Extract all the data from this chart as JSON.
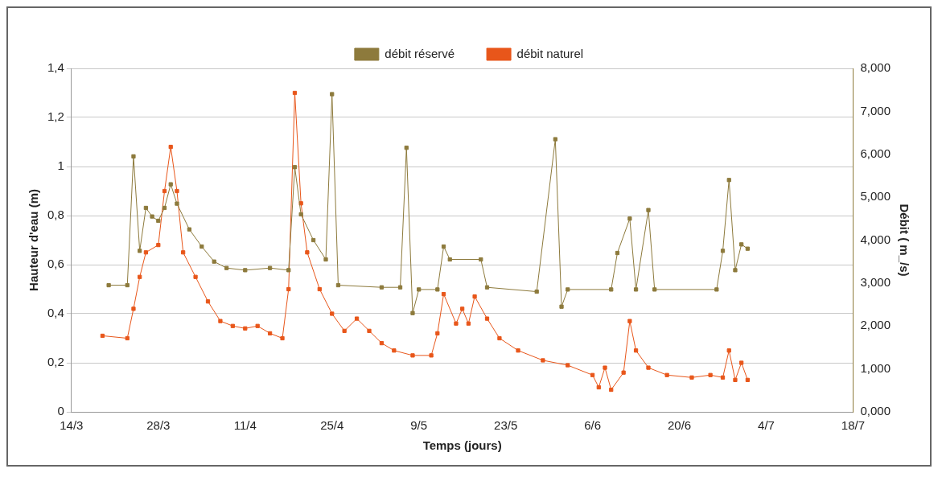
{
  "chart_data": {
    "type": "line",
    "xlabel": "Temps (jours)",
    "ylabel": "Hauteur d'eau (m)",
    "y2label": "Débit ( m_/s)",
    "xlim": [
      "--03-14",
      "--07-18"
    ],
    "xticks": [
      {
        "value": "--03-14",
        "label": "14/3"
      },
      {
        "value": "--03-28",
        "label": "28/3"
      },
      {
        "value": "--04-11",
        "label": "11/4"
      },
      {
        "value": "--04-25",
        "label": "25/4"
      },
      {
        "value": "--05-09",
        "label": "9/5"
      },
      {
        "value": "--05-23",
        "label": "23/5"
      },
      {
        "value": "--06-06",
        "label": "6/6"
      },
      {
        "value": "--06-20",
        "label": "20/6"
      },
      {
        "value": "--07-04",
        "label": "4/7"
      },
      {
        "value": "--07-18",
        "label": "18/7"
      }
    ],
    "ylim": [
      0,
      1.4
    ],
    "yticks": [
      0,
      {
        "value": 0.2,
        "label": "0,2"
      },
      {
        "value": 0.4,
        "label": "0,4"
      },
      {
        "value": 0.6,
        "label": "0,6"
      },
      {
        "value": 0.8,
        "label": "0,8"
      },
      1,
      {
        "value": 1.2,
        "label": "1,2"
      },
      {
        "value": 1.4,
        "label": "1,4"
      }
    ],
    "y2lim": [
      0,
      8
    ],
    "y2ticks": [
      {
        "value": 0,
        "label": "0,000"
      },
      {
        "value": 1,
        "label": "1,000"
      },
      {
        "value": 2,
        "label": "2,000"
      },
      {
        "value": 3,
        "label": "3,000"
      },
      {
        "value": 4,
        "label": "4,000"
      },
      {
        "value": 5,
        "label": "5,000"
      },
      {
        "value": 6,
        "label": "6,000"
      },
      {
        "value": 7,
        "label": "7,000"
      },
      {
        "value": 8,
        "label": "8,000"
      }
    ],
    "grid": "y",
    "legend": "top",
    "marker": "square",
    "line_style": "solid",
    "series": [
      {
        "name": "débit réservé",
        "color": "#8d7a3c",
        "axis": "y2",
        "x": [
          "--03-20",
          "--03-23",
          "--03-24",
          "--03-25",
          "--03-26",
          "--03-27",
          "--03-28",
          "--03-29",
          "--03-30",
          "--03-31",
          "--04-02",
          "--04-04",
          "--04-06",
          "--04-08",
          "--04-11",
          "--04-15",
          "--04-18",
          "--04-19",
          "--04-20",
          "--04-22",
          "--04-24",
          "--04-25",
          "--04-26",
          "--05-03",
          "--05-06",
          "--05-07",
          "--05-08",
          "--05-09",
          "--05-12",
          "--05-13",
          "--05-14",
          "--05-19",
          "--05-20",
          "--05-28",
          "--05-31",
          "--06-01",
          "--06-02",
          "--06-09",
          "--06-10",
          "--06-12",
          "--06-13",
          "--06-15",
          "--06-16",
          "--06-26",
          "--06-27",
          "--06-28",
          "--06-29",
          "--06-30",
          "--07-01"
        ],
        "values": [
          2.95,
          2.95,
          5.95,
          3.75,
          4.75,
          4.55,
          4.45,
          4.75,
          5.3,
          4.85,
          4.25,
          3.85,
          3.5,
          3.35,
          3.3,
          3.35,
          3.3,
          5.7,
          4.6,
          4.0,
          3.55,
          7.4,
          2.95,
          2.9,
          2.9,
          6.15,
          2.3,
          2.85,
          2.85,
          3.85,
          3.55,
          3.55,
          2.9,
          2.8,
          6.35,
          2.45,
          2.85,
          2.85,
          3.7,
          4.5,
          2.85,
          4.7,
          2.85,
          2.85,
          3.75,
          5.4,
          3.3,
          3.9,
          3.8
        ]
      },
      {
        "name": "débit naturel",
        "color": "#e8561a",
        "x": [
          "--03-19",
          "--03-23",
          "--03-24",
          "--03-25",
          "--03-26",
          "--03-28",
          "--03-29",
          "--03-30",
          "--03-31",
          "--04-01",
          "--04-03",
          "--04-05",
          "--04-07",
          "--04-09",
          "--04-11",
          "--04-13",
          "--04-15",
          "--04-17",
          "--04-18",
          "--04-19",
          "--04-20",
          "--04-21",
          "--04-23",
          "--04-25",
          "--04-27",
          "--04-29",
          "--05-01",
          "--05-03",
          "--05-05",
          "--05-08",
          "--05-11",
          "--05-12",
          "--05-13",
          "--05-15",
          "--05-16",
          "--05-17",
          "--05-18",
          "--05-20",
          "--05-22",
          "--05-25",
          "--05-29",
          "--06-02",
          "--06-06",
          "--06-07",
          "--06-08",
          "--06-09",
          "--06-11",
          "--06-12",
          "--06-13",
          "--06-15",
          "--06-18",
          "--06-22",
          "--06-25",
          "--06-27",
          "--06-28",
          "--06-29",
          "--06-30",
          "--07-01"
        ],
        "values": [
          0.31,
          0.3,
          0.42,
          0.55,
          0.65,
          0.68,
          0.9,
          1.08,
          0.9,
          0.65,
          0.55,
          0.45,
          0.37,
          0.35,
          0.34,
          0.35,
          0.32,
          0.3,
          0.5,
          1.3,
          0.85,
          0.65,
          0.5,
          0.4,
          0.33,
          0.38,
          0.33,
          0.28,
          0.25,
          0.23,
          0.23,
          0.32,
          0.48,
          0.36,
          0.42,
          0.36,
          0.47,
          0.38,
          0.3,
          0.25,
          0.21,
          0.19,
          0.15,
          0.1,
          0.18,
          0.09,
          0.16,
          0.37,
          0.25,
          0.18,
          0.15,
          0.14,
          0.15,
          0.14,
          0.25,
          0.13,
          0.2,
          0.13
        ]
      }
    ]
  }
}
